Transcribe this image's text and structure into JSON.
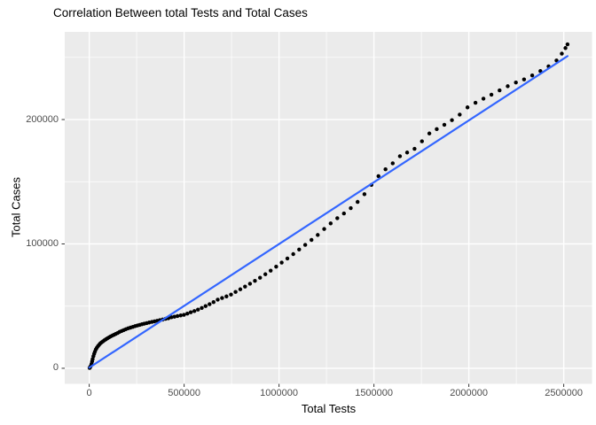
{
  "chart_data": {
    "type": "scatter",
    "title": "Correlation Between total Tests and Total Cases",
    "xlabel": "Total Tests",
    "ylabel": "Total Cases",
    "xlim": [
      -129000,
      2649000
    ],
    "ylim": [
      -12500,
      270500
    ],
    "grid": true,
    "legend": "none",
    "x_major_ticks": [
      0,
      500000,
      1000000,
      1500000,
      2000000,
      2500000
    ],
    "x_tick_labels": [
      "0",
      "500000",
      "1000000",
      "1500000",
      "2000000",
      "2500000"
    ],
    "x_minor_ticks": [
      250000,
      750000,
      1250000,
      1750000,
      2250000
    ],
    "y_major_ticks": [
      0,
      100000,
      200000
    ],
    "y_tick_labels": [
      "0",
      "100000",
      "200000"
    ],
    "y_minor_ticks": [
      50000,
      150000,
      250000
    ],
    "regression_line": {
      "x1": 0,
      "y1": 500,
      "x2": 2520000,
      "y2": 251000,
      "color": "#3366FF"
    },
    "colors": {
      "panel_background": "#EBEBEB",
      "gridline": "#FFFFFF",
      "point": "#000000",
      "axis_text": "#4D4D4D",
      "tick_mark": "#333333",
      "title_text": "#000000"
    },
    "points": [
      [
        2000,
        300
      ],
      [
        4000,
        700
      ],
      [
        6000,
        1200
      ],
      [
        9000,
        2100
      ],
      [
        12000,
        3600
      ],
      [
        15000,
        5500
      ],
      [
        18000,
        7400
      ],
      [
        22000,
        9700
      ],
      [
        26000,
        11700
      ],
      [
        30000,
        13400
      ],
      [
        35000,
        15200
      ],
      [
        40000,
        16500
      ],
      [
        46000,
        17800
      ],
      [
        52000,
        18900
      ],
      [
        58000,
        19900
      ],
      [
        65000,
        20800
      ],
      [
        72000,
        21600
      ],
      [
        80000,
        22500
      ],
      [
        88000,
        23300
      ],
      [
        96000,
        24100
      ],
      [
        105000,
        24900
      ],
      [
        113000,
        25600
      ],
      [
        122000,
        26300
      ],
      [
        131000,
        27000
      ],
      [
        140000,
        27700
      ],
      [
        150000,
        28400
      ],
      [
        160000,
        29300
      ],
      [
        171000,
        30000
      ],
      [
        182000,
        30700
      ],
      [
        193000,
        31400
      ],
      [
        205000,
        32100
      ],
      [
        217000,
        32700
      ],
      [
        230000,
        33300
      ],
      [
        242000,
        33900
      ],
      [
        254000,
        34400
      ],
      [
        266000,
        34900
      ],
      [
        278000,
        35400
      ],
      [
        290000,
        35900
      ],
      [
        303000,
        36300
      ],
      [
        316000,
        36800
      ],
      [
        330000,
        37300
      ],
      [
        344000,
        37700
      ],
      [
        358000,
        38200
      ],
      [
        372000,
        38700
      ],
      [
        387000,
        39200
      ],
      [
        402000,
        39800
      ],
      [
        417000,
        40200
      ],
      [
        433000,
        41000
      ],
      [
        449000,
        41500
      ],
      [
        465000,
        42000
      ],
      [
        482000,
        42500
      ],
      [
        499000,
        43000
      ],
      [
        517000,
        44000
      ],
      [
        535000,
        45000
      ],
      [
        554000,
        46000
      ],
      [
        573000,
        47200
      ],
      [
        593000,
        48500
      ],
      [
        613000,
        50000
      ],
      [
        634000,
        51500
      ],
      [
        655000,
        53200
      ],
      [
        677000,
        55200
      ],
      [
        700000,
        56500
      ],
      [
        723000,
        57800
      ],
      [
        747000,
        59300
      ],
      [
        771000,
        61400
      ],
      [
        796000,
        63500
      ],
      [
        821000,
        65700
      ],
      [
        847000,
        68000
      ],
      [
        873000,
        70300
      ],
      [
        900000,
        72800
      ],
      [
        928000,
        75600
      ],
      [
        956000,
        78500
      ],
      [
        985000,
        81700
      ],
      [
        1014000,
        85000
      ],
      [
        1044000,
        88300
      ],
      [
        1075000,
        91800
      ],
      [
        1106000,
        95500
      ],
      [
        1138000,
        99200
      ],
      [
        1171000,
        103200
      ],
      [
        1204000,
        107200
      ],
      [
        1238000,
        112000
      ],
      [
        1272000,
        116500
      ],
      [
        1307000,
        120700
      ],
      [
        1342000,
        124500
      ],
      [
        1378000,
        128800
      ],
      [
        1414000,
        133800
      ],
      [
        1450000,
        140000
      ],
      [
        1487000,
        147500
      ],
      [
        1524000,
        154500
      ],
      [
        1561000,
        160000
      ],
      [
        1599000,
        164800
      ],
      [
        1637000,
        170500
      ],
      [
        1675000,
        173500
      ],
      [
        1714000,
        176500
      ],
      [
        1753000,
        182500
      ],
      [
        1792000,
        188800
      ],
      [
        1831000,
        192300
      ],
      [
        1871000,
        195800
      ],
      [
        1911000,
        199500
      ],
      [
        1952000,
        204000
      ],
      [
        1993000,
        209800
      ],
      [
        2035000,
        213500
      ],
      [
        2077000,
        216800
      ],
      [
        2119000,
        220000
      ],
      [
        2162000,
        223500
      ],
      [
        2205000,
        226800
      ],
      [
        2248000,
        229800
      ],
      [
        2291000,
        232300
      ],
      [
        2334000,
        235500
      ],
      [
        2377000,
        239000
      ],
      [
        2420000,
        242800
      ],
      [
        2462000,
        247500
      ],
      [
        2490000,
        253000
      ],
      [
        2509000,
        257500
      ],
      [
        2520000,
        260500
      ]
    ]
  }
}
